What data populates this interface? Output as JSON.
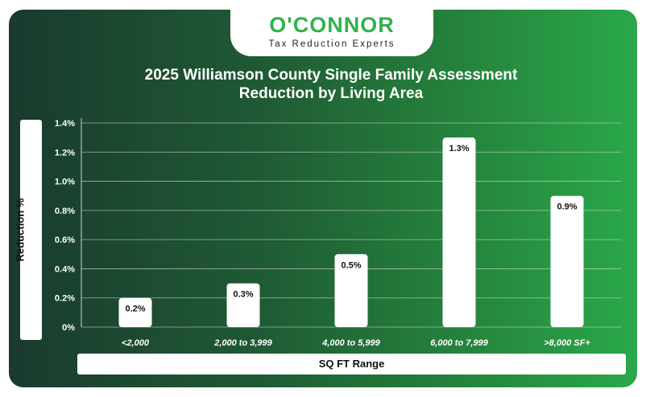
{
  "brand": {
    "name": "O'CONNOR",
    "tagline": "Tax Reduction Experts"
  },
  "chart_data": {
    "type": "bar",
    "title": "2025 Williamson County Single Family Assessment Reduction by Living Area",
    "title_lines": [
      "2025 Williamson County Single Family Assessment",
      "Reduction by Living Area"
    ],
    "xlabel": "SQ FT Range",
    "ylabel": "Reduction %",
    "categories": [
      "<2,000",
      "2,000 to 3,999",
      "4,000 to 5,999",
      "6,000 to 7,999",
      ">8,000 SF+"
    ],
    "values": [
      0.2,
      0.3,
      0.5,
      1.3,
      0.9
    ],
    "data_labels": [
      "0.2%",
      "0.3%",
      "0.5%",
      "1.3%",
      "0.9%"
    ],
    "yticks": [
      "0%",
      "0.2%",
      "0.4%",
      "0.6%",
      "0.8%",
      "1.0%",
      "1.2%",
      "1.4%"
    ],
    "ylim": [
      0,
      1.4
    ],
    "grid": true,
    "colors": {
      "bar": "#ffffff",
      "grid": "#cfd8cf",
      "text": "#ffffff",
      "label_text": "#111111"
    }
  }
}
